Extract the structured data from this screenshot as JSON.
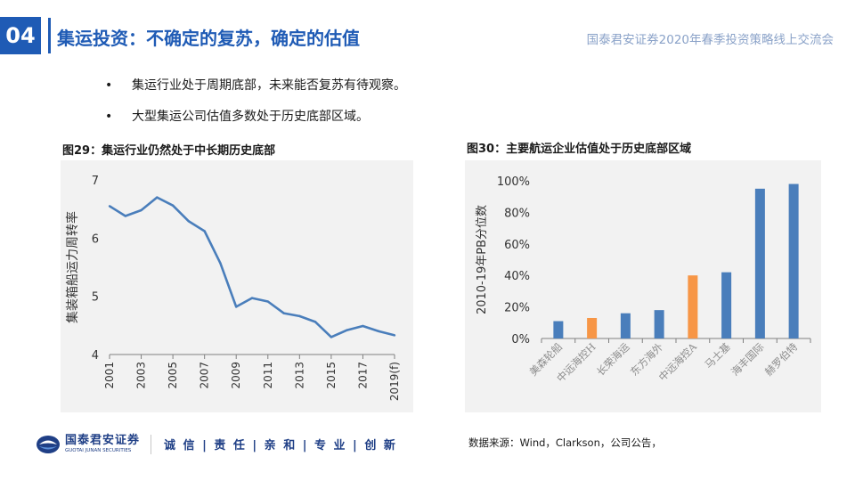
{
  "header": {
    "section_number": "04",
    "title": "集运投资：不确定的复苏，确定的估值",
    "conference": "国泰君安证券2020年春季投资策略线上交流会"
  },
  "bullets": [
    {
      "marker": "•",
      "text": "集运行业处于周期底部，未来能否复苏有待观察。"
    },
    {
      "marker": "•",
      "text": "大型集运公司估值多数处于历史底部区域。"
    }
  ],
  "footer": {
    "logo_cn": "国泰君安证券",
    "logo_en": "GUOTAI JUNAN SECURITIES",
    "slogan": "诚 信 | 责 任 | 亲 和 | 专 业 | 创 新",
    "source": "数据来源：Wind，Clarkson，公司公告，"
  },
  "colors": {
    "brand": "#1f5bb5",
    "series": "#4a7ebb",
    "highlight": "#f79646",
    "panel": "#f2f2f2"
  },
  "chart_data": [
    {
      "type": "line",
      "title": "图29：集运行业仍然处于中长期历史底部",
      "ylabel": "集装箱船运力周转率",
      "xlabel": "",
      "ylim": [
        4,
        7
      ],
      "yticks": [
        "4",
        "5",
        "6",
        "7"
      ],
      "x": [
        "2001",
        "2002",
        "2003",
        "2004",
        "2005",
        "2006",
        "2007",
        "2008",
        "2009",
        "2010",
        "2011",
        "2012",
        "2013",
        "2014",
        "2015",
        "2016",
        "2017",
        "2018",
        "2019(f)"
      ],
      "xticks": [
        "2001",
        "2003",
        "2005",
        "2007",
        "2009",
        "2011",
        "2013",
        "2015",
        "2017",
        "2019(f)"
      ],
      "values": [
        6.55,
        6.38,
        6.48,
        6.7,
        6.56,
        6.29,
        6.12,
        5.57,
        4.82,
        4.97,
        4.91,
        4.71,
        4.66,
        4.56,
        4.3,
        4.42,
        4.49,
        4.4,
        4.33
      ],
      "grid": false
    },
    {
      "type": "bar",
      "title": "图30：主要航运企业估值处于历史底部区域",
      "ylabel": "2010-19年PB分位数",
      "xlabel": "",
      "ylim": [
        0,
        100
      ],
      "yticks": [
        "0%",
        "20%",
        "40%",
        "60%",
        "80%",
        "100%"
      ],
      "categories": [
        "美森轮船",
        "中远海控H",
        "长荣海运",
        "东方海外",
        "中远海控A",
        "马士基",
        "海丰国际",
        "赫罗伯特"
      ],
      "values": [
        11,
        13,
        16,
        18,
        40,
        42,
        95,
        98
      ],
      "highlighted": [
        false,
        true,
        false,
        false,
        true,
        false,
        false,
        false
      ],
      "grid": false
    }
  ]
}
